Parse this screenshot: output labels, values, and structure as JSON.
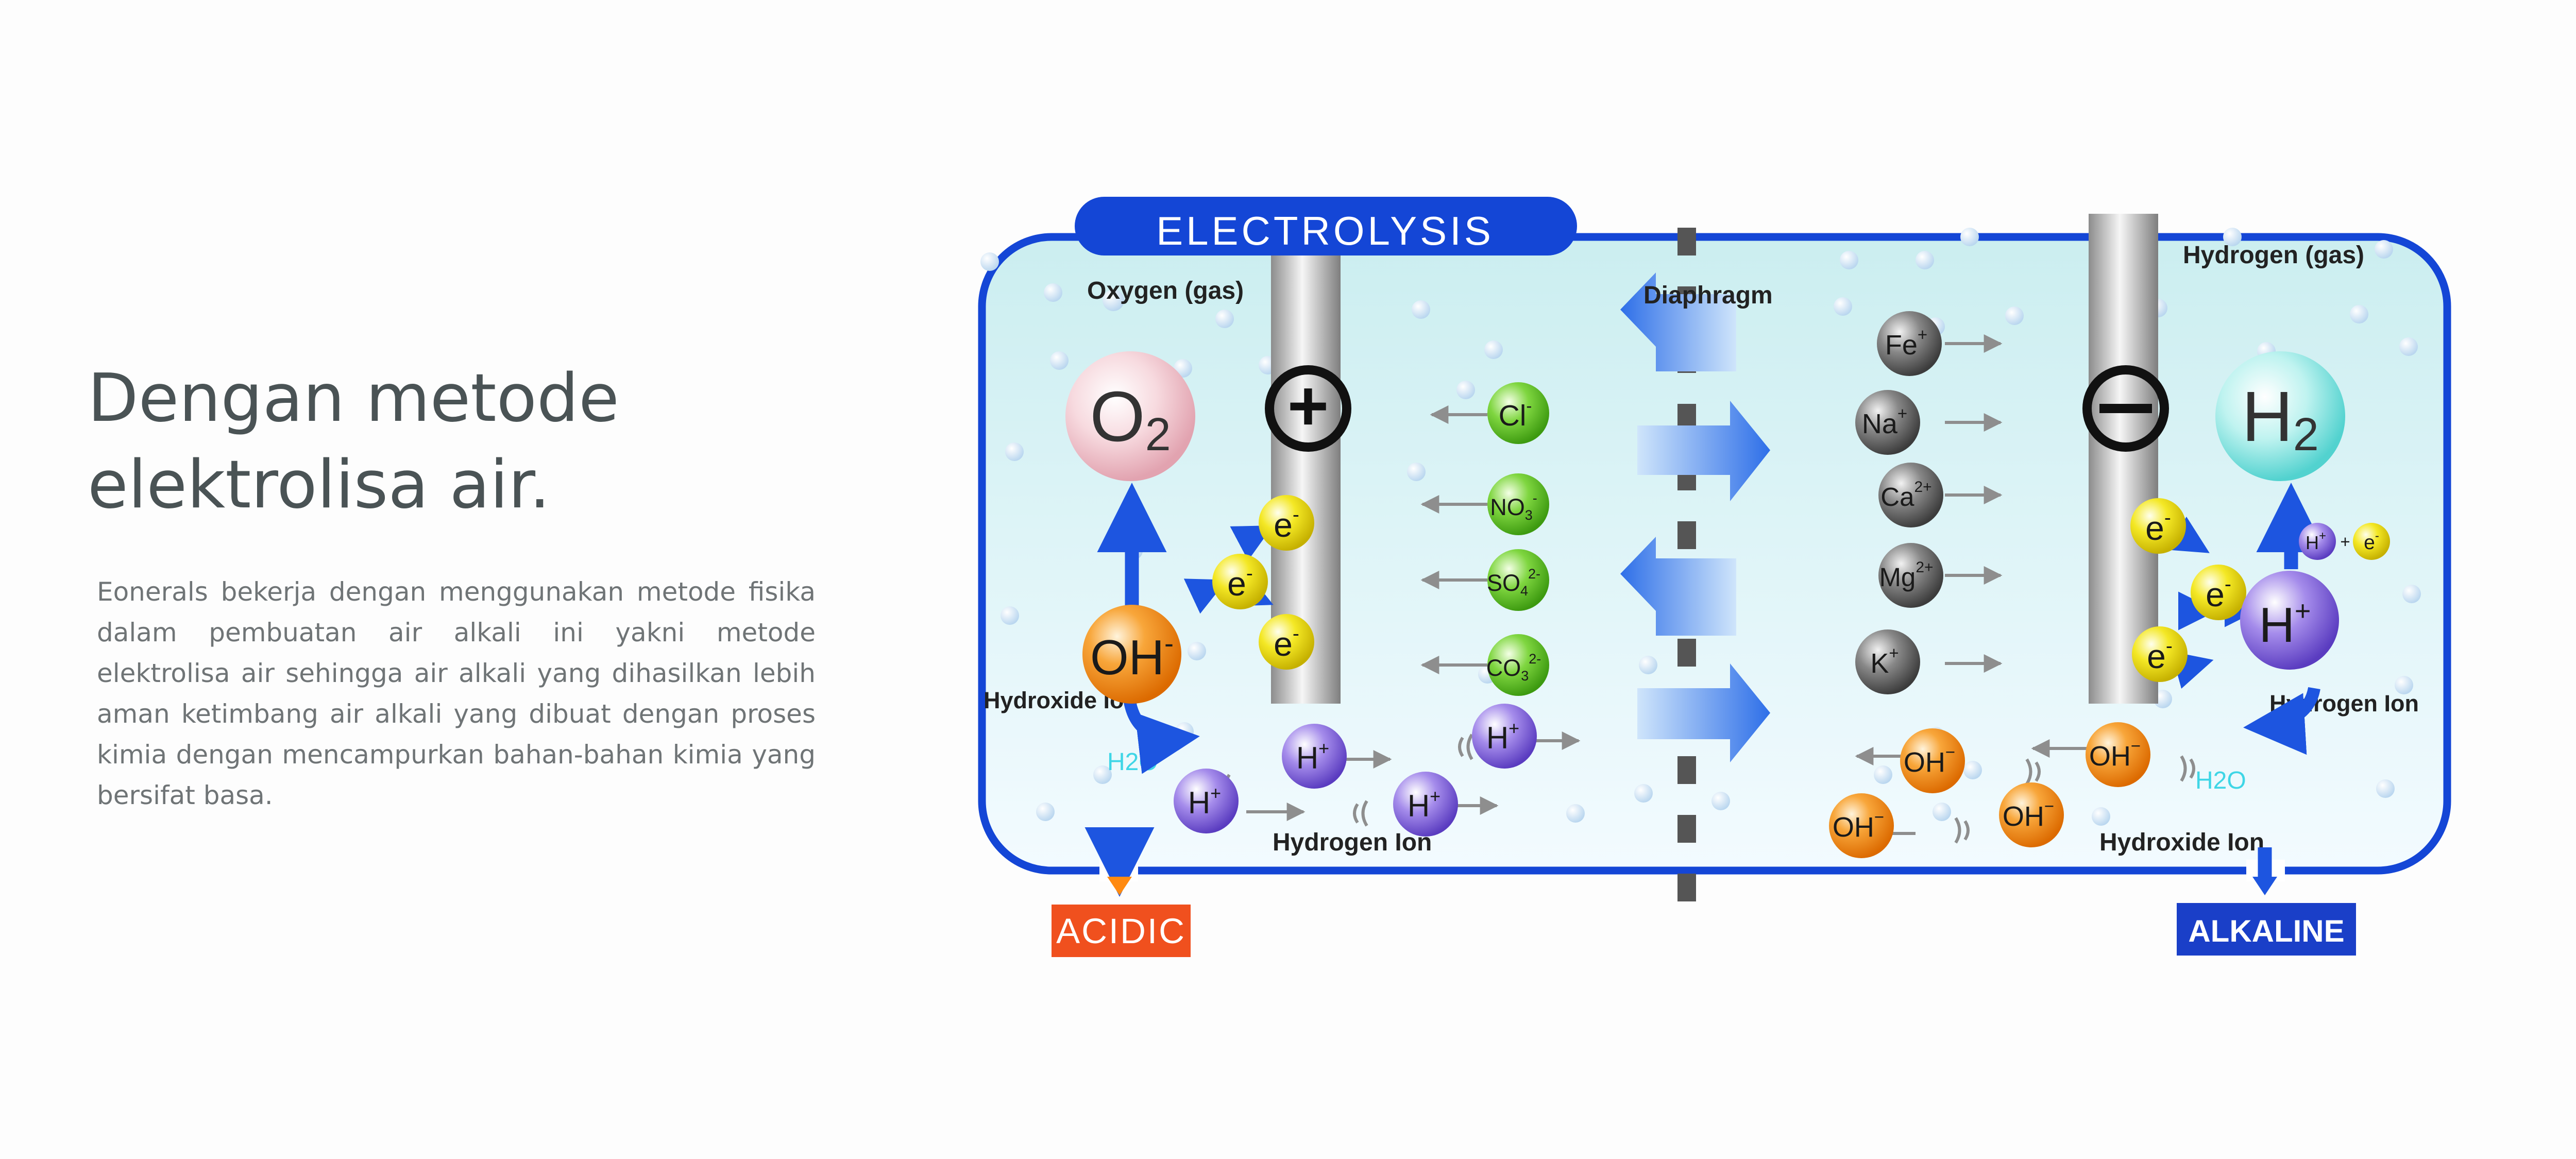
{
  "text": {
    "headline": "Dengan metode\nelektrolisa air.",
    "body": "Eonerals bekerja dengan menggunakan metode fisika dalam pembuatan air alkali ini yakni metode elektrolisa air sehingga air alkali yang dihasilkan lebih aman ketimbang air alkali yang dibuat dengan proses kimia dengan mencampurkan bahan-bahan kimia yang bersifat basa."
  },
  "diagram": {
    "banner": "ELECTROLYSIS",
    "oxygen_label": "Oxygen (gas)",
    "hydrogen_gas_label": "Hydrogen (gas)",
    "diaphragm_label": "Diaphragm",
    "o2_main": "O",
    "o2_sub": "2",
    "h2_main": "H",
    "h2_sub": "2",
    "plus_sign": "+",
    "minus_sign": "−",
    "oh_left": "OH",
    "oh_left_sup": "-",
    "electron": "e",
    "electron_sup": "-",
    "hydroxide_label_left": "Hydroxide Ion",
    "hydroxide_label_right": "Hydroxide Ion",
    "hydrogen_label_right": "Hydrogen Ion",
    "hydrogen_label_bottom": "Hydrogen Ion",
    "h2o_left": "H2O",
    "h2o_right": "H2O",
    "anion_cl": "Cl",
    "anion_cl_sup": "-",
    "anion_no3": "NO",
    "anion_no3_sub": "3",
    "anion_no3_sup": "-",
    "anion_so4": "SO",
    "anion_so4_sub": "4",
    "anion_so4_sup": "2-",
    "anion_co3": "CO",
    "anion_co3_sub": "3",
    "anion_co3_sup": "2-",
    "cation_fe": "Fe",
    "cation_fe_sup": "+",
    "cation_na": "Na",
    "cation_na_sup": "+",
    "cation_ca": "Ca",
    "cation_ca_sup": "2+",
    "cation_mg": "Mg",
    "cation_mg_sup": "2+",
    "cation_k": "K",
    "cation_k_sup": "+",
    "h_ion": "H",
    "h_ion_sup": "+",
    "oh_ion": "OH",
    "oh_ion_sup": "−",
    "hplus_big": "H",
    "hplus_big_sup": "+",
    "h_small": "H",
    "h_small_sup": "+",
    "small_plus": "+",
    "acidic": "ACIDIC",
    "alkaline": "ALKALINE",
    "colors": {
      "frame_blue": "#1446d6",
      "acidic": "#f0501e",
      "alkaline": "#1a3fc8",
      "oh_orange": "#f08a10",
      "h_purple": "#8a66dd",
      "electron_yellow": "#ecdc10",
      "anion_green": "#5cc81e",
      "cation_gray": "#5e5e5e"
    }
  }
}
